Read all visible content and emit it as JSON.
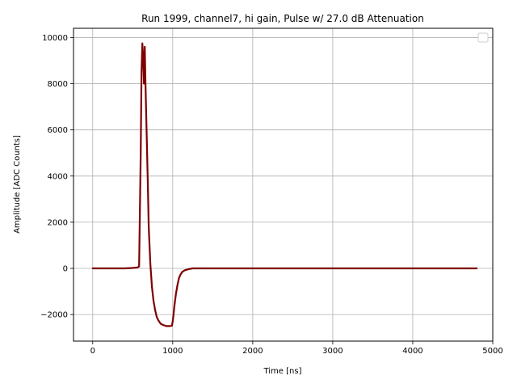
{
  "chart_data": {
    "type": "line",
    "title": "Run 1999, channel7, hi gain, Pulse w/ 27.0 dB Attenuation",
    "xlabel": "Time [ns]",
    "ylabel": "Amplitude [ADC Counts]",
    "xlim": [
      -240,
      5000
    ],
    "ylim": [
      -3150,
      10400
    ],
    "xticks": [
      0,
      1000,
      2000,
      3000,
      4000,
      5000
    ],
    "xtick_labels": [
      "0",
      "1000",
      "2000",
      "3000",
      "4000",
      "5000"
    ],
    "yticks": [
      -2000,
      0,
      2000,
      4000,
      6000,
      8000,
      10000
    ],
    "ytick_labels": [
      "−2000",
      "0",
      "2000",
      "4000",
      "6000",
      "8000",
      "10000"
    ],
    "grid": true,
    "legend": "top-right (empty)",
    "line_color": "#7f0000",
    "series": [
      {
        "x": [
          0,
          100,
          200,
          300,
          400,
          500,
          560,
          580,
          600,
          610,
          620,
          630,
          640,
          650,
          660,
          670,
          680,
          690,
          700,
          720,
          740,
          760,
          780,
          800,
          820,
          850,
          880,
          920,
          960,
          990,
          1000,
          1010,
          1020,
          1040,
          1060,
          1080,
          1100,
          1120,
          1150,
          1200,
          1250,
          1300,
          1500,
          2000,
          2500,
          3000,
          3500,
          4000,
          4500,
          4800
        ],
        "y": [
          0,
          0,
          0,
          0,
          0,
          20,
          40,
          80,
          5000,
          8500,
          9750,
          9200,
          8000,
          9600,
          8000,
          6500,
          5000,
          3500,
          1800,
          200,
          -800,
          -1400,
          -1800,
          -2100,
          -2250,
          -2400,
          -2450,
          -2500,
          -2500,
          -2480,
          -2300,
          -2000,
          -1650,
          -1100,
          -700,
          -400,
          -250,
          -150,
          -80,
          -30,
          0,
          0,
          0,
          0,
          0,
          0,
          0,
          0,
          0,
          0
        ]
      }
    ]
  }
}
